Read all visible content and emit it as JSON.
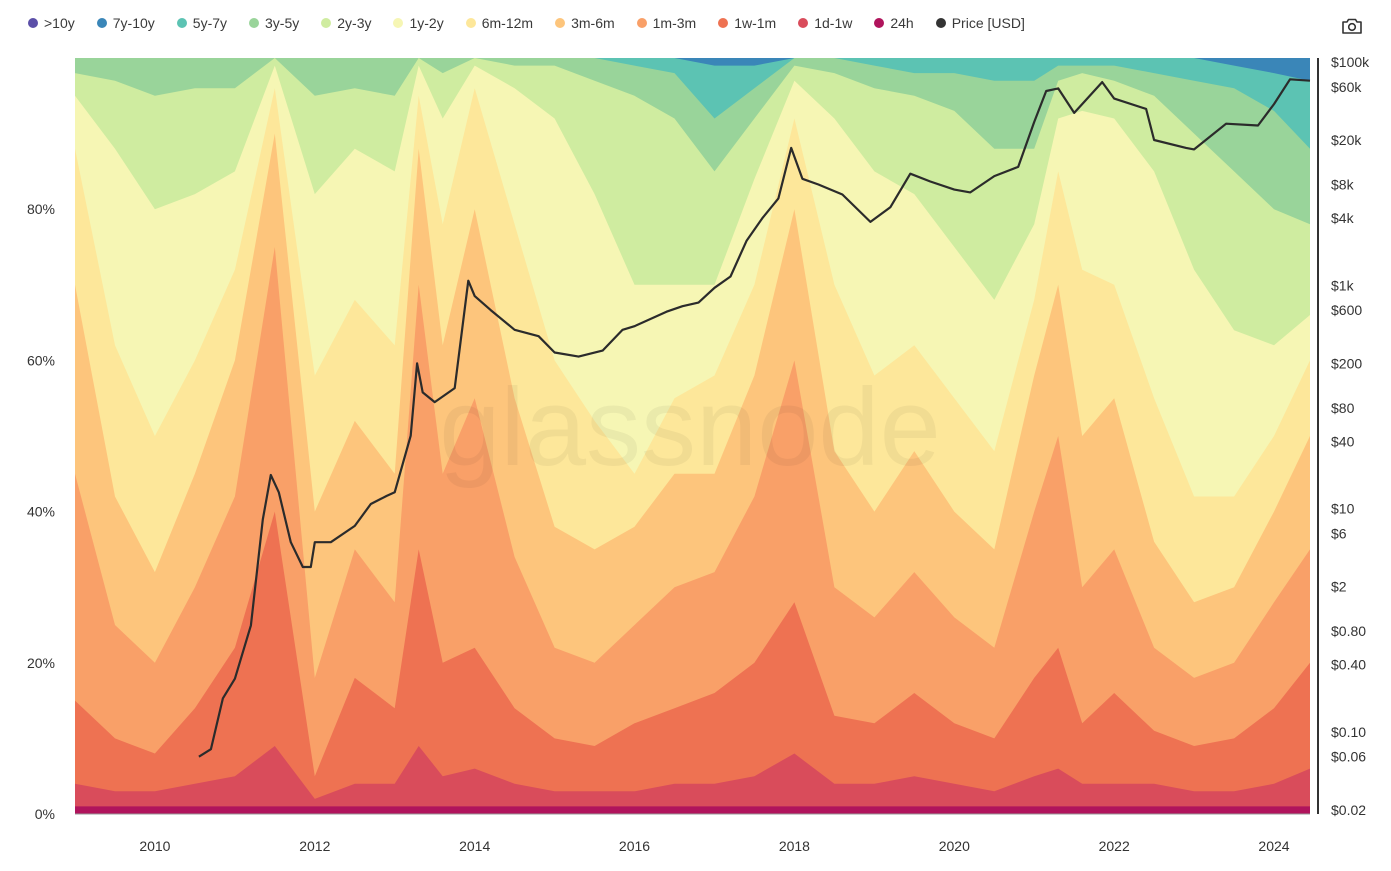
{
  "toolbar": {
    "camera_icon": "camera-icon"
  },
  "watermark": "glassnode",
  "chart_data": {
    "type": "area",
    "stacked_percent": true,
    "bands_order_bottom_to_top": [
      "24h",
      "1d-1w",
      "1w-1m",
      "1m-3m",
      "3m-6m",
      "6m-12m",
      "1y-2y",
      "2y-3y",
      "3y-5y",
      "5y-7y",
      "7y-10y",
      ">10y"
    ],
    "legend": [
      {
        "label": ">10y",
        "color": "#5b4fa8"
      },
      {
        "label": "7y-10y",
        "color": "#3a86b8"
      },
      {
        "label": "5y-7y",
        "color": "#5cc3b3"
      },
      {
        "label": "3y-5y",
        "color": "#99d49a"
      },
      {
        "label": "2y-3y",
        "color": "#cfeca0"
      },
      {
        "label": "1y-2y",
        "color": "#f6f6b4"
      },
      {
        "label": "6m-12m",
        "color": "#fde79a"
      },
      {
        "label": "3m-6m",
        "color": "#fdc57c"
      },
      {
        "label": "1m-3m",
        "color": "#f9a068"
      },
      {
        "label": "1w-1m",
        "color": "#ee7252"
      },
      {
        "label": "1d-1w",
        "color": "#d94c5b"
      },
      {
        "label": "24h",
        "color": "#b0145c"
      },
      {
        "label": "Price [USD]",
        "color": "#333333"
      }
    ],
    "x_ticks": [
      "2010",
      "2012",
      "2014",
      "2016",
      "2018",
      "2020",
      "2022",
      "2024"
    ],
    "x_tick_years": [
      2010,
      2012,
      2014,
      2016,
      2018,
      2020,
      2022,
      2024
    ],
    "x_range": [
      2009.0,
      2024.45
    ],
    "y_left_ticks": [
      "0%",
      "20%",
      "40%",
      "60%",
      "80%"
    ],
    "y_left_values": [
      0,
      20,
      40,
      60,
      80
    ],
    "y_left_range": [
      0,
      100
    ],
    "y_right_ticks": [
      "$100k",
      "$60k",
      "$20k",
      "$8k",
      "$4k",
      "$1k",
      "$600",
      "$200",
      "$80",
      "$40",
      "$10",
      "$6",
      "$2",
      "$0.80",
      "$0.40",
      "$0.10",
      "$0.06",
      "$0.02"
    ],
    "y_right_values": [
      100000,
      60000,
      20000,
      8000,
      4000,
      1000,
      600,
      200,
      80,
      40,
      10,
      6,
      2,
      0.8,
      0.4,
      0.1,
      0.06,
      0.02
    ],
    "y_right_range": [
      0.02,
      100000
    ],
    "y_right_scale": "log",
    "band_series": {
      "years": [
        2009.0,
        2009.5,
        2010.0,
        2010.5,
        2011.0,
        2011.5,
        2012.0,
        2012.5,
        2013.0,
        2013.3,
        2013.6,
        2014.0,
        2014.5,
        2015.0,
        2015.5,
        2016.0,
        2016.5,
        2017.0,
        2017.5,
        2018.0,
        2018.5,
        2019.0,
        2019.5,
        2020.0,
        2020.5,
        2021.0,
        2021.3,
        2021.6,
        2022.0,
        2022.5,
        2023.0,
        2023.5,
        2024.0,
        2024.45
      ],
      "cumulative_tops": {
        "24h": [
          1,
          1,
          1,
          1,
          1,
          1,
          1,
          1,
          1,
          1,
          1,
          1,
          1,
          1,
          1,
          1,
          1,
          1,
          1,
          1,
          1,
          1,
          1,
          1,
          1,
          1,
          1,
          1,
          1,
          1,
          1,
          1,
          1,
          1
        ],
        "1d-1w": [
          4,
          3,
          3,
          4,
          5,
          9,
          2,
          4,
          4,
          9,
          5,
          6,
          4,
          3,
          3,
          3,
          4,
          4,
          5,
          8,
          4,
          4,
          5,
          4,
          3,
          5,
          6,
          4,
          4,
          4,
          3,
          3,
          4,
          6
        ],
        "1w-1m": [
          15,
          10,
          8,
          14,
          22,
          40,
          5,
          18,
          14,
          35,
          20,
          22,
          14,
          10,
          9,
          12,
          14,
          16,
          20,
          28,
          13,
          12,
          16,
          12,
          10,
          18,
          22,
          12,
          16,
          11,
          9,
          10,
          14,
          20
        ],
        "1m-3m": [
          45,
          25,
          20,
          30,
          42,
          75,
          18,
          35,
          28,
          70,
          45,
          55,
          34,
          22,
          20,
          25,
          30,
          32,
          42,
          60,
          30,
          26,
          32,
          26,
          22,
          40,
          50,
          30,
          35,
          22,
          18,
          20,
          28,
          35
        ],
        "3m-6m": [
          70,
          42,
          32,
          45,
          60,
          90,
          40,
          52,
          45,
          88,
          62,
          80,
          55,
          38,
          35,
          38,
          45,
          45,
          58,
          80,
          48,
          40,
          48,
          40,
          35,
          58,
          70,
          50,
          55,
          36,
          28,
          30,
          40,
          50
        ],
        "6m-12m": [
          88,
          62,
          50,
          60,
          72,
          96,
          58,
          68,
          62,
          95,
          78,
          96,
          78,
          60,
          52,
          45,
          55,
          58,
          70,
          92,
          70,
          58,
          62,
          55,
          48,
          68,
          85,
          72,
          70,
          55,
          42,
          42,
          50,
          60
        ],
        "1y-2y": [
          95,
          88,
          80,
          82,
          85,
          99,
          82,
          88,
          85,
          99,
          92,
          99,
          96,
          92,
          82,
          70,
          70,
          70,
          84,
          97,
          92,
          85,
          82,
          75,
          68,
          78,
          92,
          93,
          92,
          85,
          72,
          64,
          62,
          66
        ],
        "2y-3y": [
          98,
          97,
          95,
          96,
          96,
          100,
          95,
          96,
          95,
          100,
          98,
          100,
          99,
          99,
          97,
          95,
          92,
          85,
          92,
          99,
          98,
          96,
          95,
          93,
          88,
          88,
          97,
          98,
          97,
          95,
          90,
          85,
          80,
          78
        ],
        "3y-5y": [
          100,
          100,
          100,
          100,
          100,
          100,
          100,
          100,
          100,
          100,
          100,
          100,
          100,
          100,
          100,
          99,
          98,
          92,
          96,
          100,
          100,
          99,
          98,
          98,
          97,
          97,
          99,
          99,
          99,
          98,
          97,
          96,
          93,
          88
        ],
        "5y-7y": [
          100,
          100,
          100,
          100,
          100,
          100,
          100,
          100,
          100,
          100,
          100,
          100,
          100,
          100,
          100,
          100,
          100,
          99,
          99,
          100,
          100,
          100,
          100,
          100,
          100,
          100,
          100,
          100,
          100,
          100,
          100,
          99,
          98,
          97
        ],
        "7y-10y": [
          100,
          100,
          100,
          100,
          100,
          100,
          100,
          100,
          100,
          100,
          100,
          100,
          100,
          100,
          100,
          100,
          100,
          100,
          100,
          100,
          100,
          100,
          100,
          100,
          100,
          100,
          100,
          100,
          100,
          100,
          100,
          100,
          100,
          100
        ],
        ">10y": [
          100,
          100,
          100,
          100,
          100,
          100,
          100,
          100,
          100,
          100,
          100,
          100,
          100,
          100,
          100,
          100,
          100,
          100,
          100,
          100,
          100,
          100,
          100,
          100,
          100,
          100,
          100,
          100,
          100,
          100,
          100,
          100,
          100,
          100
        ]
      }
    },
    "price_series": {
      "years": [
        2010.55,
        2010.7,
        2010.85,
        2011.0,
        2011.2,
        2011.35,
        2011.45,
        2011.55,
        2011.7,
        2011.85,
        2011.95,
        2012.0,
        2012.2,
        2012.5,
        2012.7,
        2012.9,
        2013.0,
        2013.2,
        2013.28,
        2013.35,
        2013.5,
        2013.75,
        2013.92,
        2014.0,
        2014.2,
        2014.5,
        2014.8,
        2015.0,
        2015.3,
        2015.6,
        2015.85,
        2016.0,
        2016.4,
        2016.6,
        2016.8,
        2017.0,
        2017.2,
        2017.4,
        2017.6,
        2017.8,
        2017.96,
        2018.1,
        2018.3,
        2018.6,
        2018.95,
        2019.2,
        2019.45,
        2019.7,
        2020.0,
        2020.2,
        2020.5,
        2020.8,
        2021.0,
        2021.15,
        2021.3,
        2021.5,
        2021.85,
        2022.0,
        2022.4,
        2022.5,
        2022.9,
        2023.0,
        2023.4,
        2023.8,
        2024.0,
        2024.2,
        2024.45
      ],
      "usd": [
        0.06,
        0.07,
        0.2,
        0.3,
        0.9,
        8,
        20,
        14,
        5,
        3,
        3,
        5,
        5,
        7,
        11,
        13,
        14,
        45,
        200,
        110,
        90,
        120,
        1100,
        800,
        600,
        400,
        350,
        250,
        230,
        260,
        400,
        430,
        580,
        650,
        700,
        950,
        1200,
        2500,
        4000,
        6000,
        17000,
        9000,
        8000,
        6500,
        3700,
        5000,
        10000,
        8500,
        7200,
        6800,
        9500,
        11500,
        29000,
        55000,
        58000,
        35000,
        66000,
        47000,
        38000,
        20000,
        17000,
        16500,
        28000,
        27000,
        42000,
        70000,
        68000
      ]
    }
  }
}
